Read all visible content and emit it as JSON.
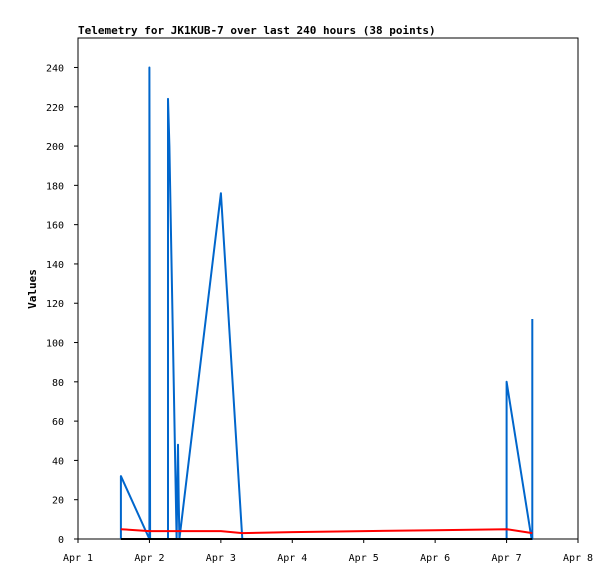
{
  "chart_data": {
    "type": "line",
    "title": "Telemetry for JK1KUB-7 over last 240 hours (38 points)",
    "ylabel": "Values",
    "xlabel": "",
    "x_ticks": [
      {
        "x": 0,
        "label": "Apr 1"
      },
      {
        "x": 1,
        "label": "Apr 2"
      },
      {
        "x": 2,
        "label": "Apr 3"
      },
      {
        "x": 3,
        "label": "Apr 4"
      },
      {
        "x": 4,
        "label": "Apr 5"
      },
      {
        "x": 5,
        "label": "Apr 6"
      },
      {
        "x": 6,
        "label": "Apr 7"
      },
      {
        "x": 7,
        "label": "Apr 8"
      }
    ],
    "y_ticks": [
      0,
      20,
      40,
      60,
      80,
      100,
      120,
      140,
      160,
      180,
      200,
      220,
      240
    ],
    "xlim": [
      0,
      7
    ],
    "ylim": [
      0,
      255
    ],
    "grid": false,
    "x_unit_note": "days after Apr 1",
    "series": [
      {
        "color": "#0066cc",
        "x": [
          0.6,
          0.6,
          1.0,
          1.0,
          1.005,
          1.01,
          1.26,
          1.26,
          1.28,
          1.29,
          1.38,
          1.4,
          1.41,
          1.42,
          2.0,
          2.3,
          2.3,
          6.0,
          6.0,
          6.35,
          6.36,
          6.36
        ],
        "y": [
          0,
          32,
          0,
          240,
          113,
          0,
          0,
          224,
          200,
          180,
          0,
          48,
          20,
          0,
          176,
          0,
          0,
          0,
          80,
          0,
          0,
          112
        ]
      },
      {
        "color": "#ff0000",
        "x": [
          0.6,
          1.0,
          1.5,
          2.0,
          2.3,
          3.0,
          4.0,
          5.0,
          6.0,
          6.36
        ],
        "y": [
          5,
          4,
          4,
          4,
          3,
          3.5,
          4,
          4.5,
          5,
          3
        ]
      },
      {
        "color": "#000000",
        "x": [
          0.6,
          6.36
        ],
        "y": [
          0,
          0
        ]
      }
    ]
  }
}
